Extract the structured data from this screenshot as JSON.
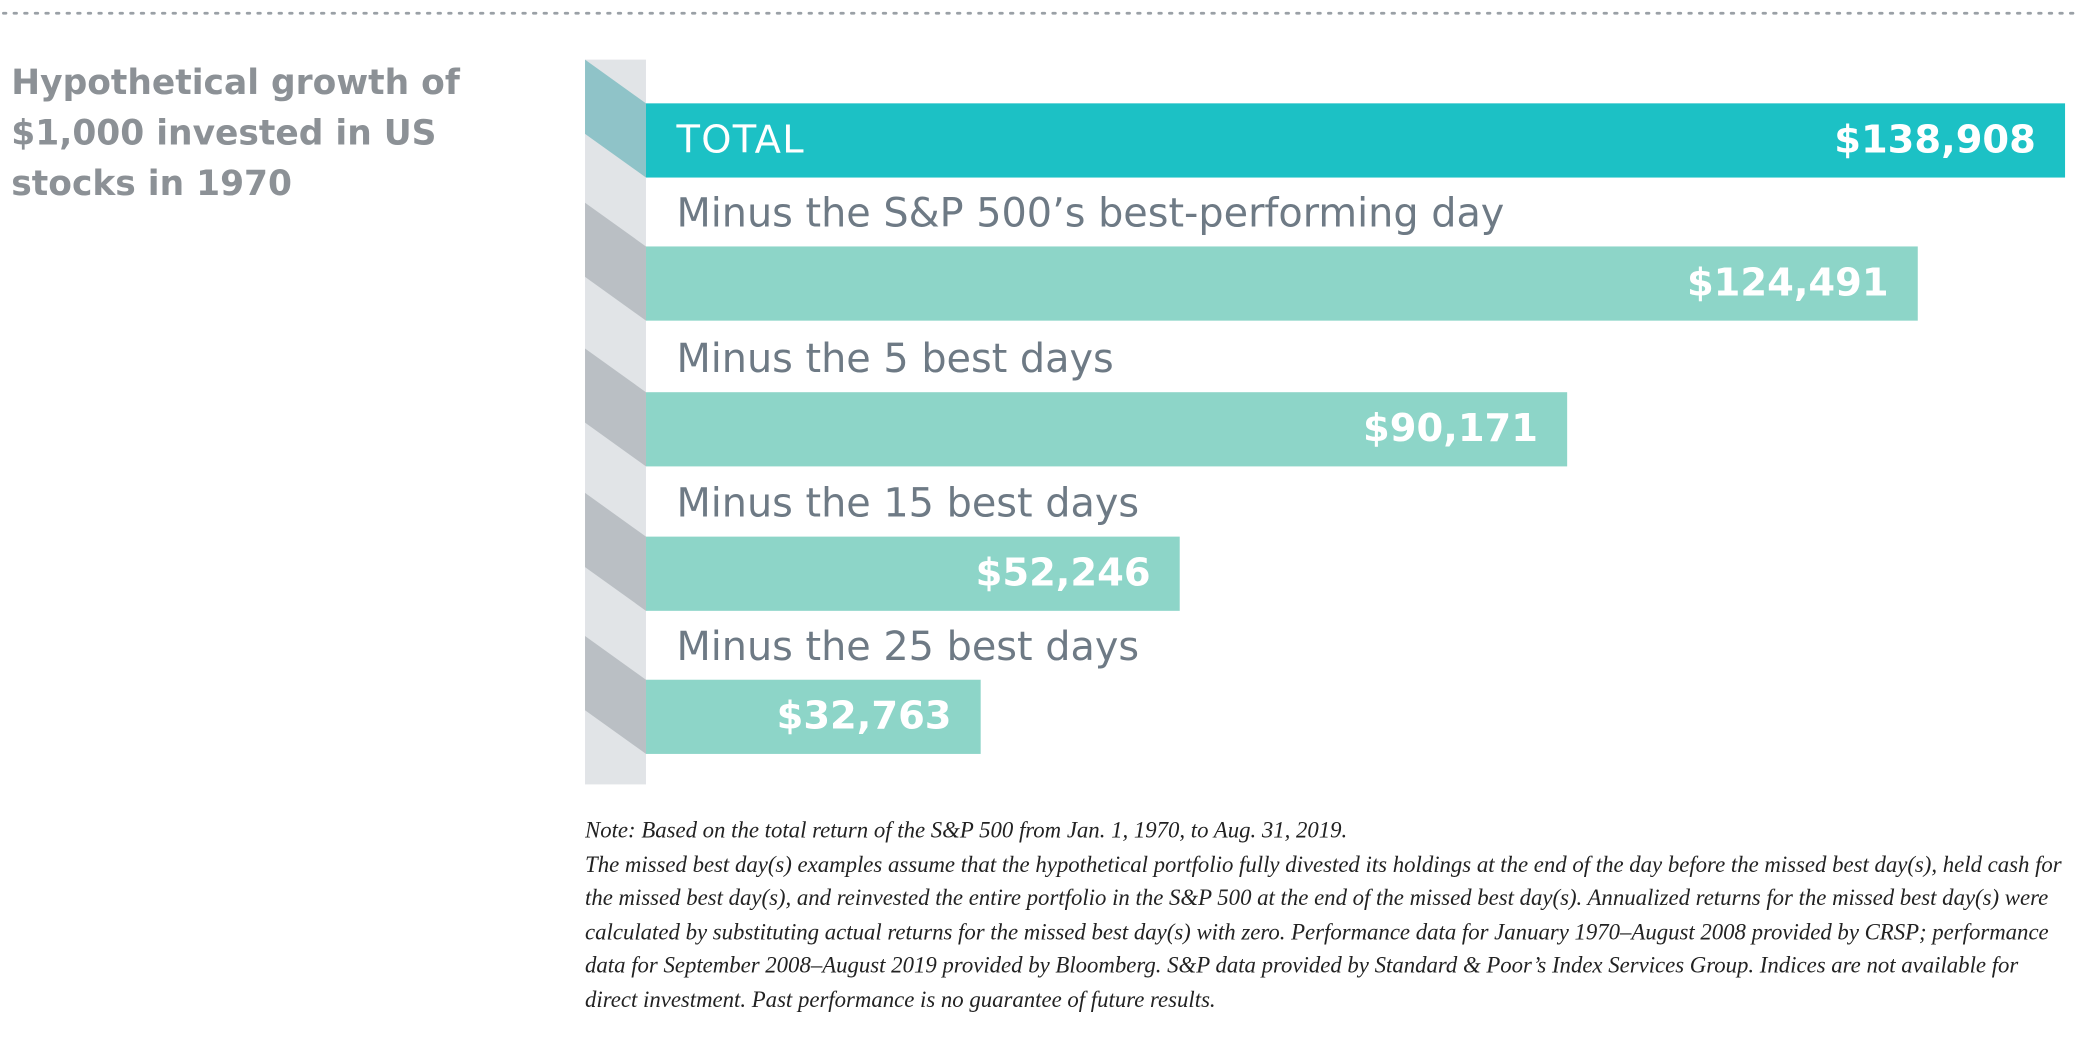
{
  "chart_data": {
    "type": "bar",
    "orientation": "horizontal",
    "title": "Hypothetical growth of $1,000 invested in US stocks in 1970",
    "categories": [
      "TOTAL",
      "Minus the S&P 500’s best-performing day",
      "Minus the 5 best days",
      "Minus the 15 best days",
      "Minus the 25 best days"
    ],
    "values": [
      138908,
      124491,
      90171,
      52246,
      32763
    ],
    "value_labels": [
      "$138,908",
      "$124,491",
      "$90,171",
      "$52,246",
      "$32,763"
    ],
    "colors": [
      "#1cc1c5",
      "#8dd5c8",
      "#8dd5c8",
      "#8dd5c8",
      "#8dd5c8"
    ],
    "note": [
      "Note: Based on the total return of the S&P 500 from Jan. 1, 1970, to Aug. 31, 2019.",
      "The missed best day(s) examples assume that the hypothetical portfolio fully divested its holdings at the end of the day before the missed best day(s), held cash for the missed best day(s), and reinvested the entire portfolio in the S&P 500 at the end of the missed best day(s).  Annualized returns for the missed best day(s) were calculated by substituting actual returns for the missed best day(s) with zero.  Performance data for January 1970–August 2008 provided by CRSP; performance data for September 2008–August 2019 provided by Bloomberg.  S&P data provided by Standard & Poor’s Index Services Group.  Indices are not available for direct investment. Past performance is no guarantee of future results."
    ]
  }
}
